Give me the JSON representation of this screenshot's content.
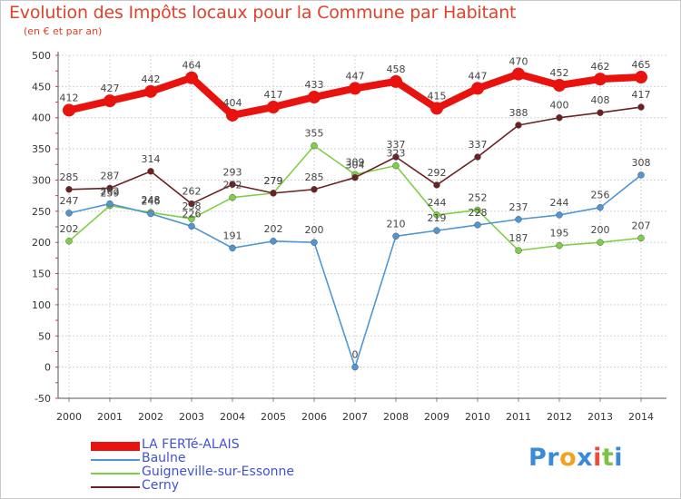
{
  "title": "Evolution des Impôts locaux pour la Commune par Habitant",
  "subtitle": "(en € et par an)",
  "logo": {
    "parts": [
      "Pr",
      "o",
      "x",
      "i",
      "t",
      "i"
    ],
    "colors": [
      "#3a8ad6",
      "#f0a321",
      "#3a8ad6",
      "#e84e3b",
      "#7cc243",
      "#3a8ad6"
    ]
  },
  "chart_data": {
    "type": "line",
    "title": "Evolution des Impôts locaux pour la Commune par Habitant",
    "ylabel": "(en € et par an)",
    "xlabel": "",
    "x": [
      "2000",
      "2001",
      "2002",
      "2003",
      "2004",
      "2005",
      "2006",
      "2007",
      "2008",
      "2009",
      "2010",
      "2011",
      "2012",
      "2013",
      "2014"
    ],
    "ylim": [
      -50,
      500
    ],
    "yticks": [
      -50,
      0,
      50,
      100,
      150,
      200,
      250,
      300,
      350,
      400,
      450,
      500
    ],
    "grid": true,
    "legend_position": "bottom-left",
    "series": [
      {
        "name": "LA FERTé-ALAIS",
        "color": "#e8120f",
        "values": [
          412,
          427,
          442,
          464,
          404,
          417,
          433,
          447,
          458,
          415,
          447,
          470,
          452,
          462,
          465
        ]
      },
      {
        "name": "Baulne",
        "color": "#4f96d3",
        "values": [
          247,
          262,
          246,
          226,
          191,
          202,
          200,
          0,
          210,
          219,
          228,
          237,
          244,
          256,
          308
        ]
      },
      {
        "name": "Guigneville-sur-Essonne",
        "color": "#7ecf45",
        "values": [
          202,
          259,
          248,
          238,
          272,
          279,
          355,
          309,
          323,
          244,
          252,
          187,
          195,
          200,
          207
        ]
      },
      {
        "name": "Cerny",
        "color": "#6b2022",
        "values": [
          285,
          287,
          314,
          262,
          293,
          279,
          285,
          304,
          337,
          292,
          337,
          388,
          400,
          408,
          417
        ]
      }
    ],
    "data_labels": [
      [
        "412",
        "427",
        "442",
        "464",
        "404",
        "417",
        "433",
        "447",
        "458",
        "415",
        "447",
        "470",
        "452",
        "462",
        "465"
      ],
      [
        "247",
        "262",
        "246",
        "226",
        "191",
        "202",
        "200",
        "0",
        "210",
        "219",
        "228",
        "237",
        "244",
        "256",
        "308"
      ],
      [
        "202",
        "259",
        "248",
        "238",
        "272",
        "279",
        "355",
        "309",
        "323",
        "244",
        "252",
        "187",
        "195",
        "200",
        "207"
      ],
      [
        "285",
        "287",
        "314",
        "262",
        "293",
        "279",
        "285",
        "304",
        "337",
        "292",
        "337",
        "388",
        "400",
        "408",
        "417"
      ]
    ]
  }
}
